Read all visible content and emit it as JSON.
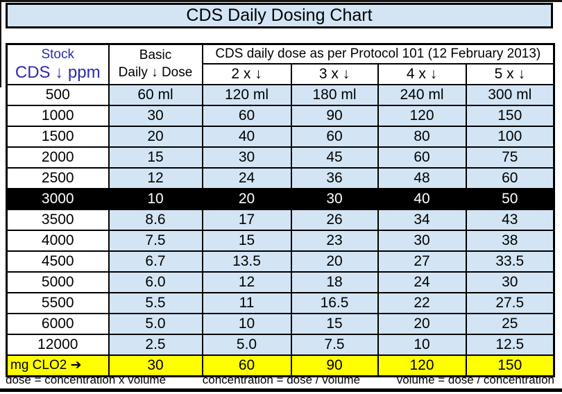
{
  "title": "CDS Daily Dosing Chart",
  "colors": {
    "cell_blue": "#d3e5f4",
    "highlight_black": "#000000",
    "mg_row_yellow": "#ffff00",
    "stock_header_blue": "#2b2bab"
  },
  "table": {
    "header": {
      "col1_line1": "Stock",
      "col1_line2": "CDS ↓ ppm",
      "col2_line1": "Basic",
      "col2_line2": "Daily ↓ Dose",
      "group_title": "CDS daily dose as per Protocol 101 (12 February 2013)",
      "multipliers": [
        "2 x  ↓",
        "3 x  ↓",
        "4 x  ↓",
        "5 x  ↓"
      ]
    },
    "rows": [
      {
        "ppm": "500",
        "values": [
          "60 ml",
          "120 ml",
          "180 ml",
          "240 ml",
          "300 ml"
        ],
        "highlight": false
      },
      {
        "ppm": "1000",
        "values": [
          "30",
          "60",
          "90",
          "120",
          "150"
        ],
        "highlight": false
      },
      {
        "ppm": "1500",
        "values": [
          "20",
          "40",
          "60",
          "80",
          "100"
        ],
        "highlight": false
      },
      {
        "ppm": "2000",
        "values": [
          "15",
          "30",
          "45",
          "60",
          "75"
        ],
        "highlight": false
      },
      {
        "ppm": "2500",
        "values": [
          "12",
          "24",
          "36",
          "48",
          "60"
        ],
        "highlight": false
      },
      {
        "ppm": "3000",
        "values": [
          "10",
          "20",
          "30",
          "40",
          "50"
        ],
        "highlight": true
      },
      {
        "ppm": "3500",
        "values": [
          "8.6",
          "17",
          "26",
          "34",
          "43"
        ],
        "highlight": false
      },
      {
        "ppm": "4000",
        "values": [
          "7.5",
          "15",
          "23",
          "30",
          "38"
        ],
        "highlight": false
      },
      {
        "ppm": "4500",
        "values": [
          "6.7",
          "13.5",
          "20",
          "27",
          "33.5"
        ],
        "highlight": false
      },
      {
        "ppm": "5000",
        "values": [
          "6.0",
          "12",
          "18",
          "24",
          "30"
        ],
        "highlight": false
      },
      {
        "ppm": "5500",
        "values": [
          "5.5",
          "11",
          "16.5",
          "22",
          "27.5"
        ],
        "highlight": false
      },
      {
        "ppm": "6000",
        "values": [
          "5.0",
          "10",
          "15",
          "20",
          "25"
        ],
        "highlight": false
      },
      {
        "ppm": "12000",
        "values": [
          "2.5",
          "5.0",
          "7.5",
          "10",
          "12.5"
        ],
        "highlight": false
      }
    ],
    "mg_row": {
      "label": "mg  CLO2 ➔",
      "values": [
        "30",
        "60",
        "90",
        "120",
        "150"
      ]
    }
  },
  "formulas": [
    "dose = concentration x volume",
    "concentration = dose / volume",
    "volume = dose / concentration"
  ],
  "chart_data": {
    "type": "table",
    "title": "CDS Daily Dosing Chart",
    "group_header": "CDS daily dose as per Protocol 101 (12 February 2013)",
    "columns": [
      "Stock CDS ppm",
      "Basic Daily Dose",
      "2 x",
      "3 x",
      "4 x",
      "5 x"
    ],
    "unit_first_row": "ml",
    "highlighted_row_ppm": 3000,
    "rows": [
      [
        500,
        60,
        120,
        180,
        240,
        300
      ],
      [
        1000,
        30,
        60,
        90,
        120,
        150
      ],
      [
        1500,
        20,
        40,
        60,
        80,
        100
      ],
      [
        2000,
        15,
        30,
        45,
        60,
        75
      ],
      [
        2500,
        12,
        24,
        36,
        48,
        60
      ],
      [
        3000,
        10,
        20,
        30,
        40,
        50
      ],
      [
        3500,
        8.6,
        17,
        26,
        34,
        43
      ],
      [
        4000,
        7.5,
        15,
        23,
        30,
        38
      ],
      [
        4500,
        6.7,
        13.5,
        20,
        27,
        33.5
      ],
      [
        5000,
        6.0,
        12,
        18,
        24,
        30
      ],
      [
        5500,
        5.5,
        11,
        16.5,
        22,
        27.5
      ],
      [
        6000,
        5.0,
        10,
        15,
        20,
        25
      ],
      [
        12000,
        2.5,
        5.0,
        7.5,
        10,
        12.5
      ]
    ],
    "mg_clo2_row": [
      30,
      60,
      90,
      120,
      150
    ]
  }
}
